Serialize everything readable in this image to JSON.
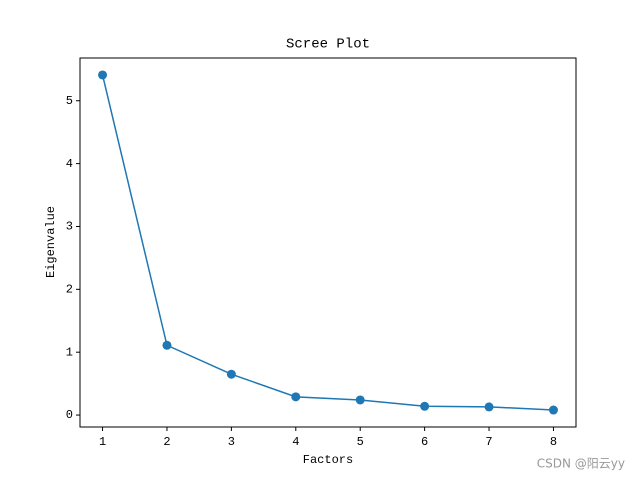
{
  "chart_data": {
    "type": "line",
    "title": "Scree Plot",
    "x_label": "Factors",
    "y_label": "Eigenvalue",
    "x": [
      1,
      2,
      3,
      4,
      5,
      6,
      7,
      8
    ],
    "series": [
      {
        "name": "Eigenvalue",
        "color": "#1f77b4",
        "values": [
          5.41,
          1.11,
          0.65,
          0.29,
          0.24,
          0.14,
          0.13,
          0.08
        ]
      }
    ],
    "xlim": [
      0.65,
      8.35
    ],
    "ylim": [
      -0.19,
      5.68
    ],
    "xticks": [
      1,
      2,
      3,
      4,
      5,
      6,
      7,
      8
    ],
    "yticks": [
      0,
      1,
      2,
      3,
      4,
      5
    ],
    "markers": true,
    "grid": false
  },
  "watermark": "CSDN @阳云yy"
}
